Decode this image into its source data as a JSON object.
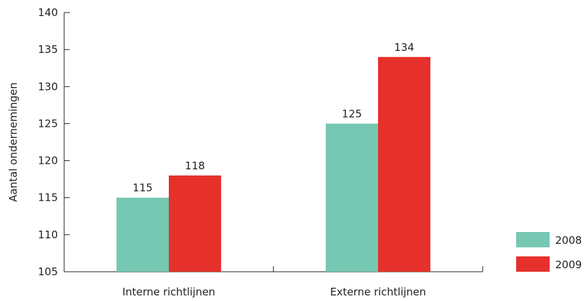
{
  "chart_data": {
    "type": "bar",
    "categories": [
      "Interne richtlijnen",
      "Externe richtlijnen"
    ],
    "series": [
      {
        "name": "2008",
        "values": [
          115,
          125
        ],
        "color": "#76c8b2"
      },
      {
        "name": "2009",
        "values": [
          118,
          134
        ],
        "color": "#e6302b"
      }
    ],
    "ylabel": "Aantal ondernemingen",
    "xlabel": "",
    "ylim": [
      105,
      140
    ],
    "yticks": [
      105,
      110,
      115,
      120,
      125,
      130,
      135,
      140
    ],
    "grid": false,
    "legend": "bottom-right",
    "data_labels": true
  }
}
